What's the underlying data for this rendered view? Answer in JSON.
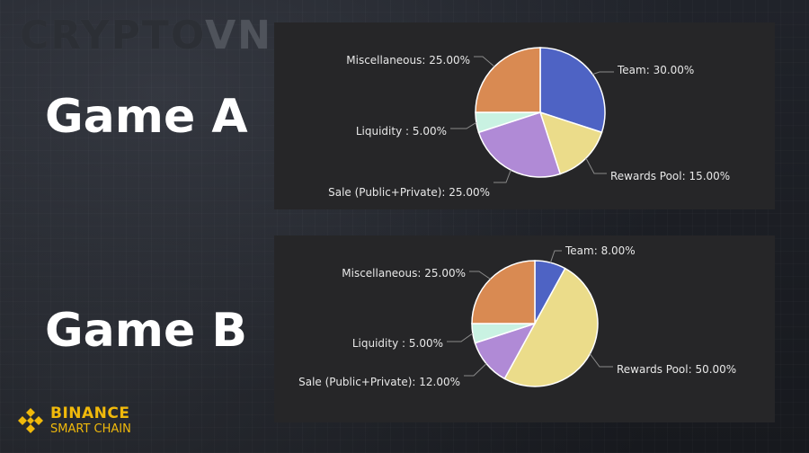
{
  "watermark": {
    "main": "CRYPTO",
    "accent": "VN"
  },
  "games": [
    {
      "label": "Game A"
    },
    {
      "label": "Game B"
    }
  ],
  "brand": {
    "name": "BINANCE",
    "sub": "SMART CHAIN",
    "color": "#f0b90b"
  },
  "colors": {
    "Team": "#4e63c4",
    "Rewards Pool": "#ebdc8a",
    "Sale (Public+Private)": "#b08ad6",
    "Liquidity": "#c9f2e2",
    "Miscellaneous": "#d98a52"
  },
  "chart_data": [
    {
      "type": "pie",
      "title": "",
      "slices": [
        {
          "name": "Team",
          "value": 30.0,
          "label": "Team: 30.00%"
        },
        {
          "name": "Rewards Pool",
          "value": 15.0,
          "label": "Rewards Pool: 15.00%"
        },
        {
          "name": "Sale (Public+Private)",
          "value": 25.0,
          "label": "Sale (Public+Private): 25.00%"
        },
        {
          "name": "Liquidity",
          "value": 5.0,
          "label": "Liquidity : 5.00%"
        },
        {
          "name": "Miscellaneous",
          "value": 25.0,
          "label": "Miscellaneous: 25.00%"
        }
      ]
    },
    {
      "type": "pie",
      "title": "",
      "slices": [
        {
          "name": "Team",
          "value": 8.0,
          "label": "Team: 8.00%"
        },
        {
          "name": "Rewards Pool",
          "value": 50.0,
          "label": "Rewards Pool: 50.00%"
        },
        {
          "name": "Sale (Public+Private)",
          "value": 12.0,
          "label": "Sale (Public+Private): 12.00%"
        },
        {
          "name": "Liquidity",
          "value": 5.0,
          "label": "Liquidity : 5.00%"
        },
        {
          "name": "Miscellaneous",
          "value": 25.0,
          "label": "Miscellaneous: 25.00%"
        }
      ]
    }
  ]
}
